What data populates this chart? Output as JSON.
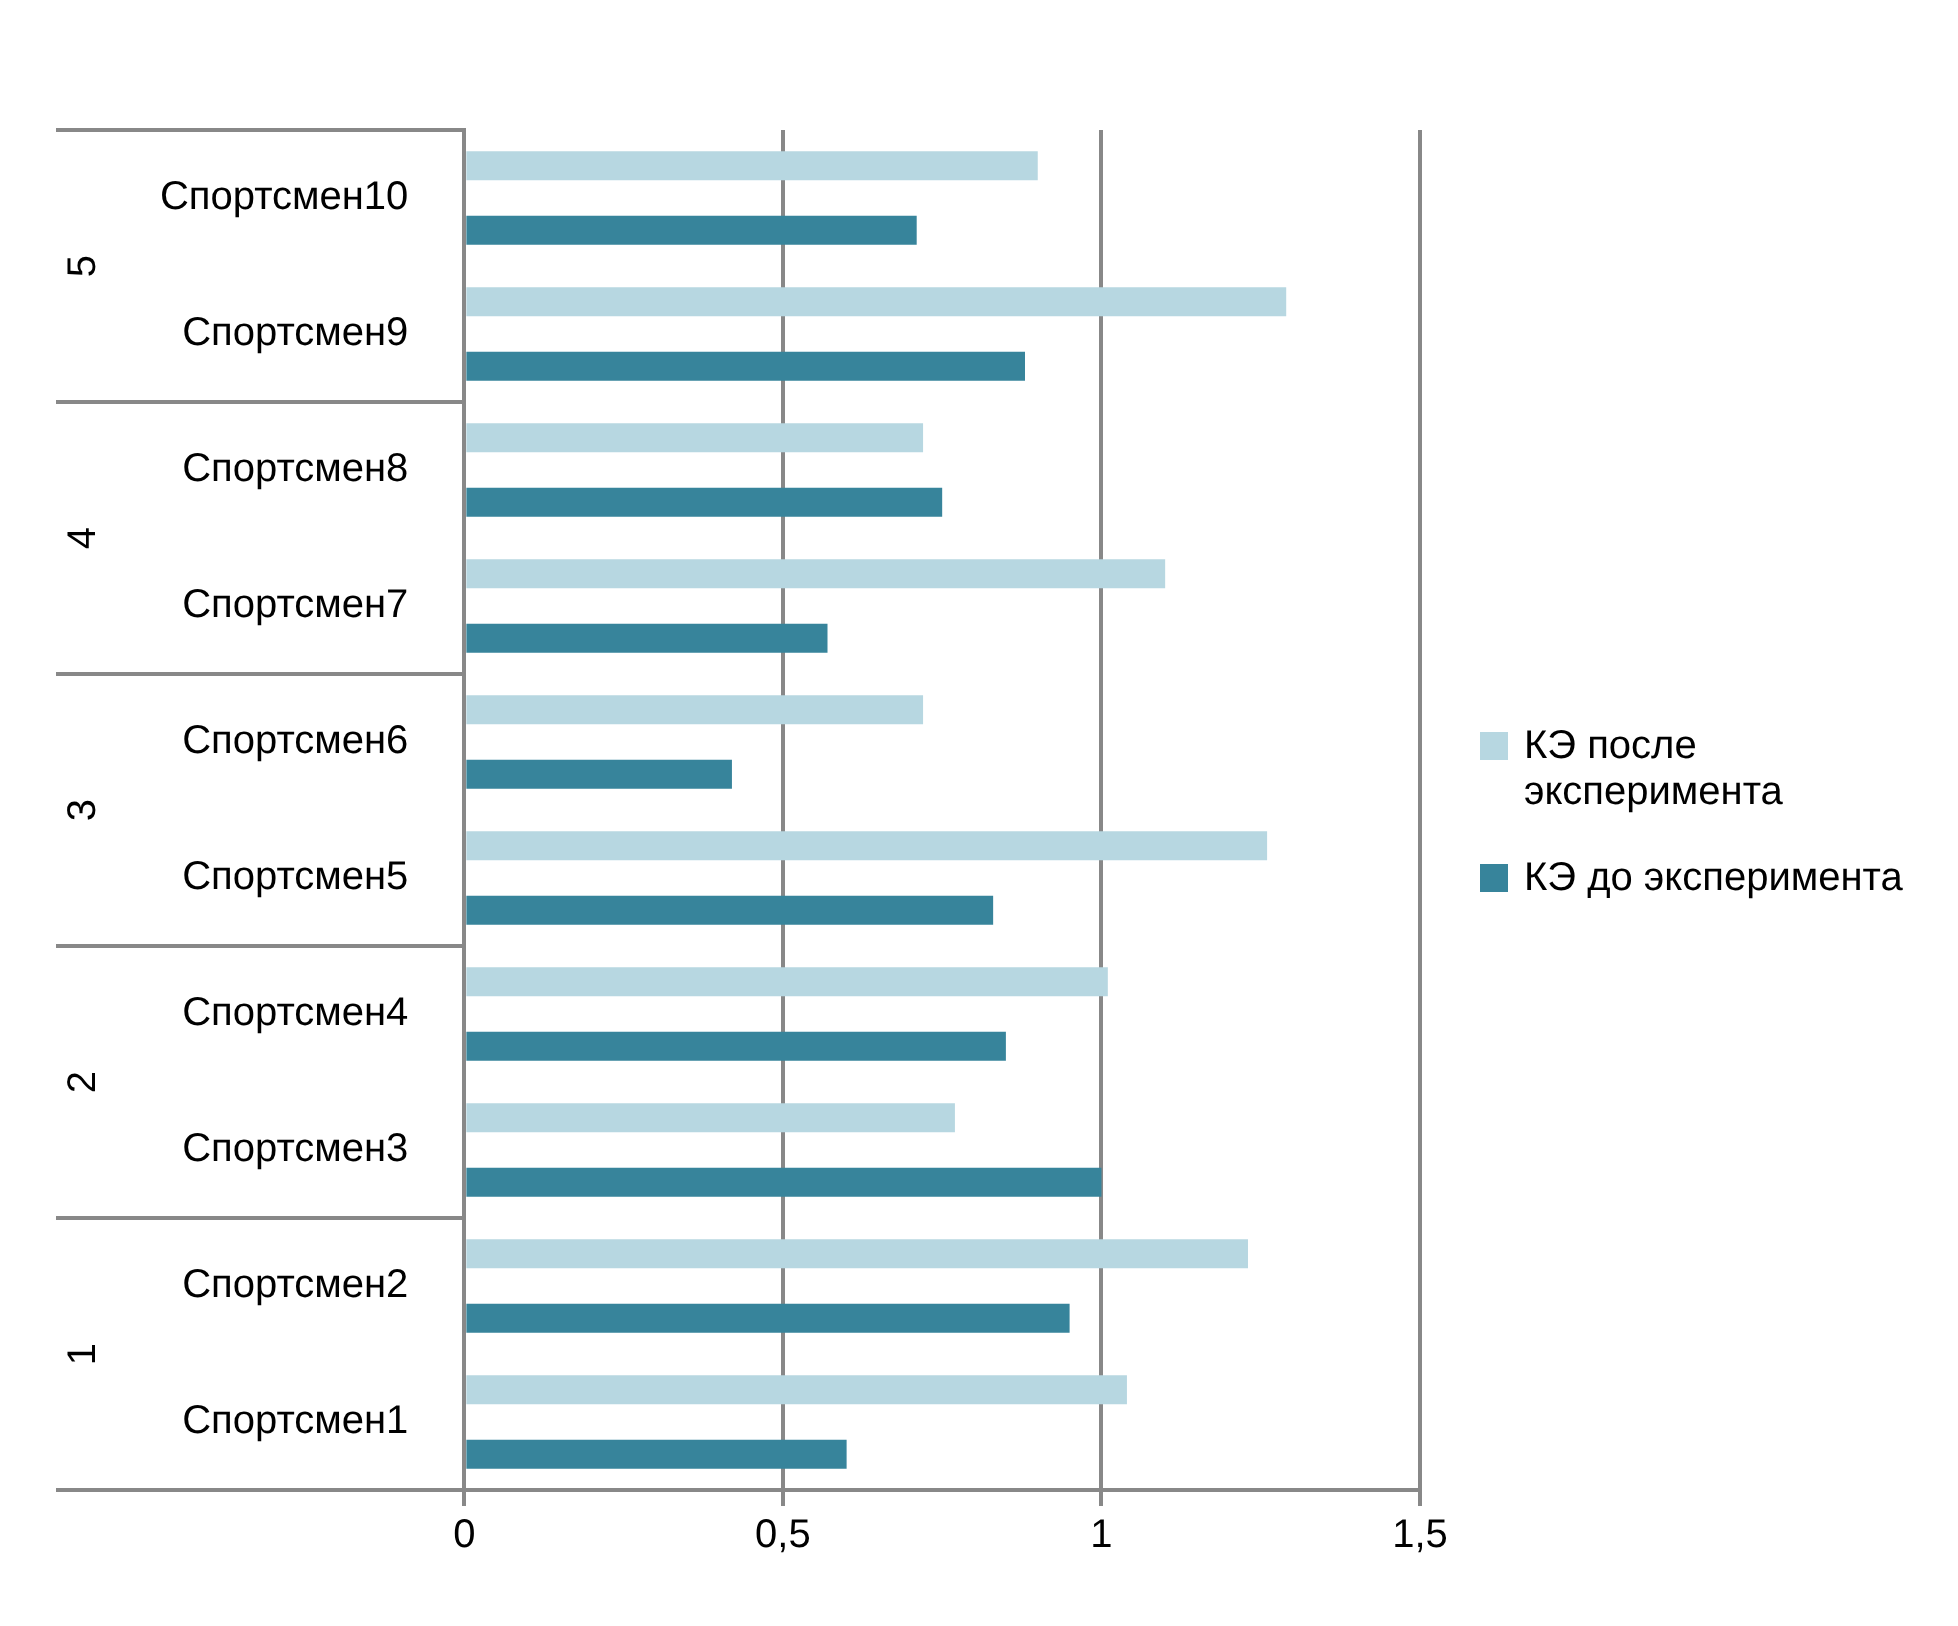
{
  "chart_data": {
    "type": "bar",
    "orientation": "horizontal",
    "categories": [
      "Спортсмен10",
      "Спортсмен9",
      "Спортсмен8",
      "Спортсмен7",
      "Спортсмен6",
      "Спортсмен5",
      "Спортсмен4",
      "Спортсмен3",
      "Спортсмен2",
      "Спортсмен1"
    ],
    "annotations": [
      "5",
      "4",
      "3",
      "2",
      "1"
    ],
    "series": [
      {
        "name": "КЭ после эксперимента",
        "color": "#b7d7e1",
        "values": [
          0.9,
          1.29,
          0.72,
          1.1,
          0.72,
          1.26,
          1.01,
          0.77,
          1.23,
          1.04
        ]
      },
      {
        "name": "КЭ до эксперимента",
        "color": "#37849b",
        "values": [
          0.71,
          0.88,
          0.75,
          0.57,
          0.42,
          0.83,
          0.85,
          1.0,
          0.95,
          0.6
        ]
      }
    ],
    "xlim": [
      0,
      1.5
    ],
    "xticks": [
      0,
      {
        "value": 0.5,
        "label": "0,5"
      },
      1,
      {
        "value": 1.5,
        "label": "1,5"
      }
    ],
    "grid": "x",
    "legend": "right"
  }
}
